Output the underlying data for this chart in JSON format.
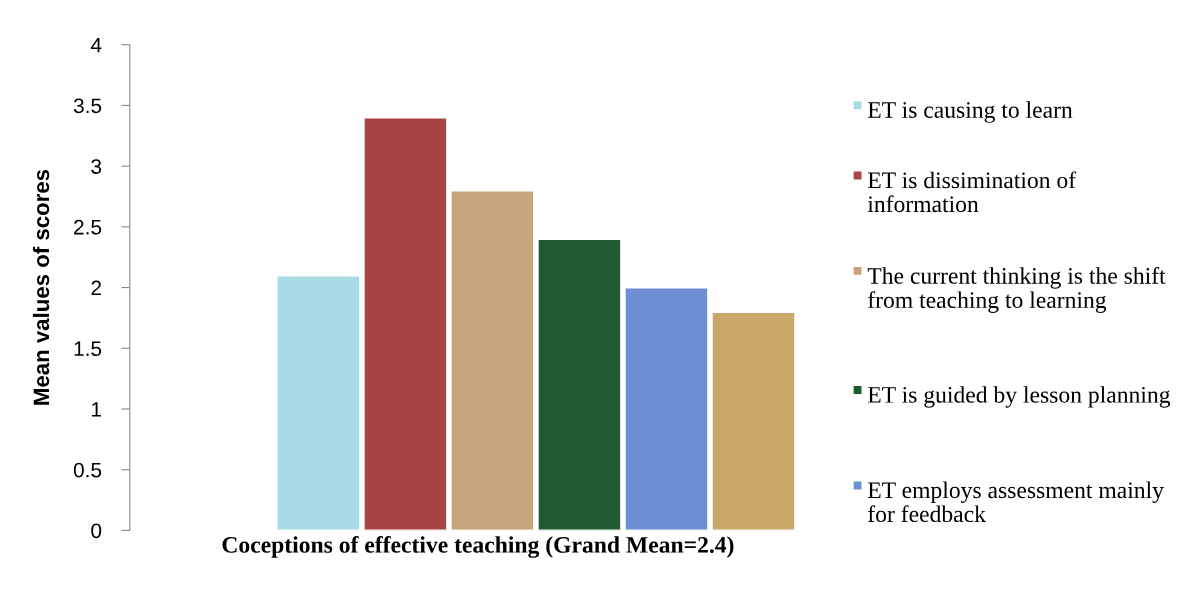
{
  "chart_data": {
    "type": "bar",
    "xlabel": "Coceptions of effective teaching (Grand Mean=2.4)",
    "ylabel": "Mean values of scores",
    "categories": [
      null
    ],
    "series": [
      {
        "name": "ET is causing to learn",
        "color": "#a9dbe6",
        "values": [
          2.1
        ]
      },
      {
        "name": "ET is dissimination of information",
        "color": "#a84543",
        "values": [
          3.4
        ]
      },
      {
        "name": "The current thinking is the shift from teaching to learning",
        "color": "#c6a47c",
        "values": [
          2.8
        ]
      },
      {
        "name": "ET is guided by lesson planning",
        "color": "#1f5a32",
        "values": [
          2.4
        ]
      },
      {
        "name": "ET employs assessment mainly for feedback",
        "color": "#6e8fd2",
        "values": [
          2.0
        ]
      },
      {
        "color": "#c9a86a",
        "values": [
          1.8
        ]
      }
    ],
    "ylim": [
      0,
      4
    ],
    "yticks": [
      0,
      0.5,
      1,
      1.5,
      2,
      2.5,
      3,
      3.5,
      4
    ],
    "grid": false,
    "legend": "right"
  }
}
